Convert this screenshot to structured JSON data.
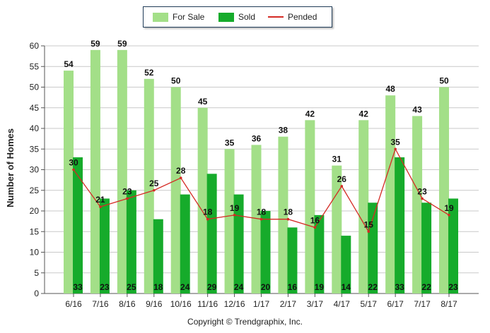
{
  "legend": {
    "for_sale": "For Sale",
    "sold": "Sold",
    "pended": "Pended"
  },
  "footer": {
    "copyright": "Copyright © Trendgraphix, Inc."
  },
  "colors": {
    "for_sale": "#a3df88",
    "sold": "#16ab2b",
    "pended": "#d42a24",
    "grid": "#c9c9c9",
    "axis": "#555555"
  },
  "chart_data": {
    "type": "bar",
    "ylabel": "Number of Homes",
    "xlabel": "",
    "ylim": [
      0,
      60
    ],
    "yticks": [
      0,
      5,
      10,
      15,
      20,
      25,
      30,
      35,
      40,
      45,
      50,
      55,
      60
    ],
    "grid": true,
    "legend_position": "top-center",
    "categories": [
      "6/16",
      "7/16",
      "8/16",
      "9/16",
      "10/16",
      "11/16",
      "12/16",
      "1/17",
      "2/17",
      "3/17",
      "4/17",
      "5/17",
      "6/17",
      "7/17",
      "8/17"
    ],
    "series": [
      {
        "name": "For Sale",
        "type": "bar",
        "values": [
          54,
          59,
          59,
          52,
          50,
          45,
          35,
          36,
          38,
          42,
          31,
          42,
          48,
          43,
          50
        ]
      },
      {
        "name": "Sold",
        "type": "bar",
        "values": [
          33,
          23,
          25,
          18,
          24,
          29,
          24,
          20,
          16,
          19,
          14,
          22,
          33,
          22,
          23
        ]
      },
      {
        "name": "Pended",
        "type": "line",
        "values": [
          30,
          21,
          23,
          25,
          28,
          18,
          19,
          18,
          18,
          16,
          26,
          15,
          35,
          23,
          19
        ]
      }
    ]
  }
}
